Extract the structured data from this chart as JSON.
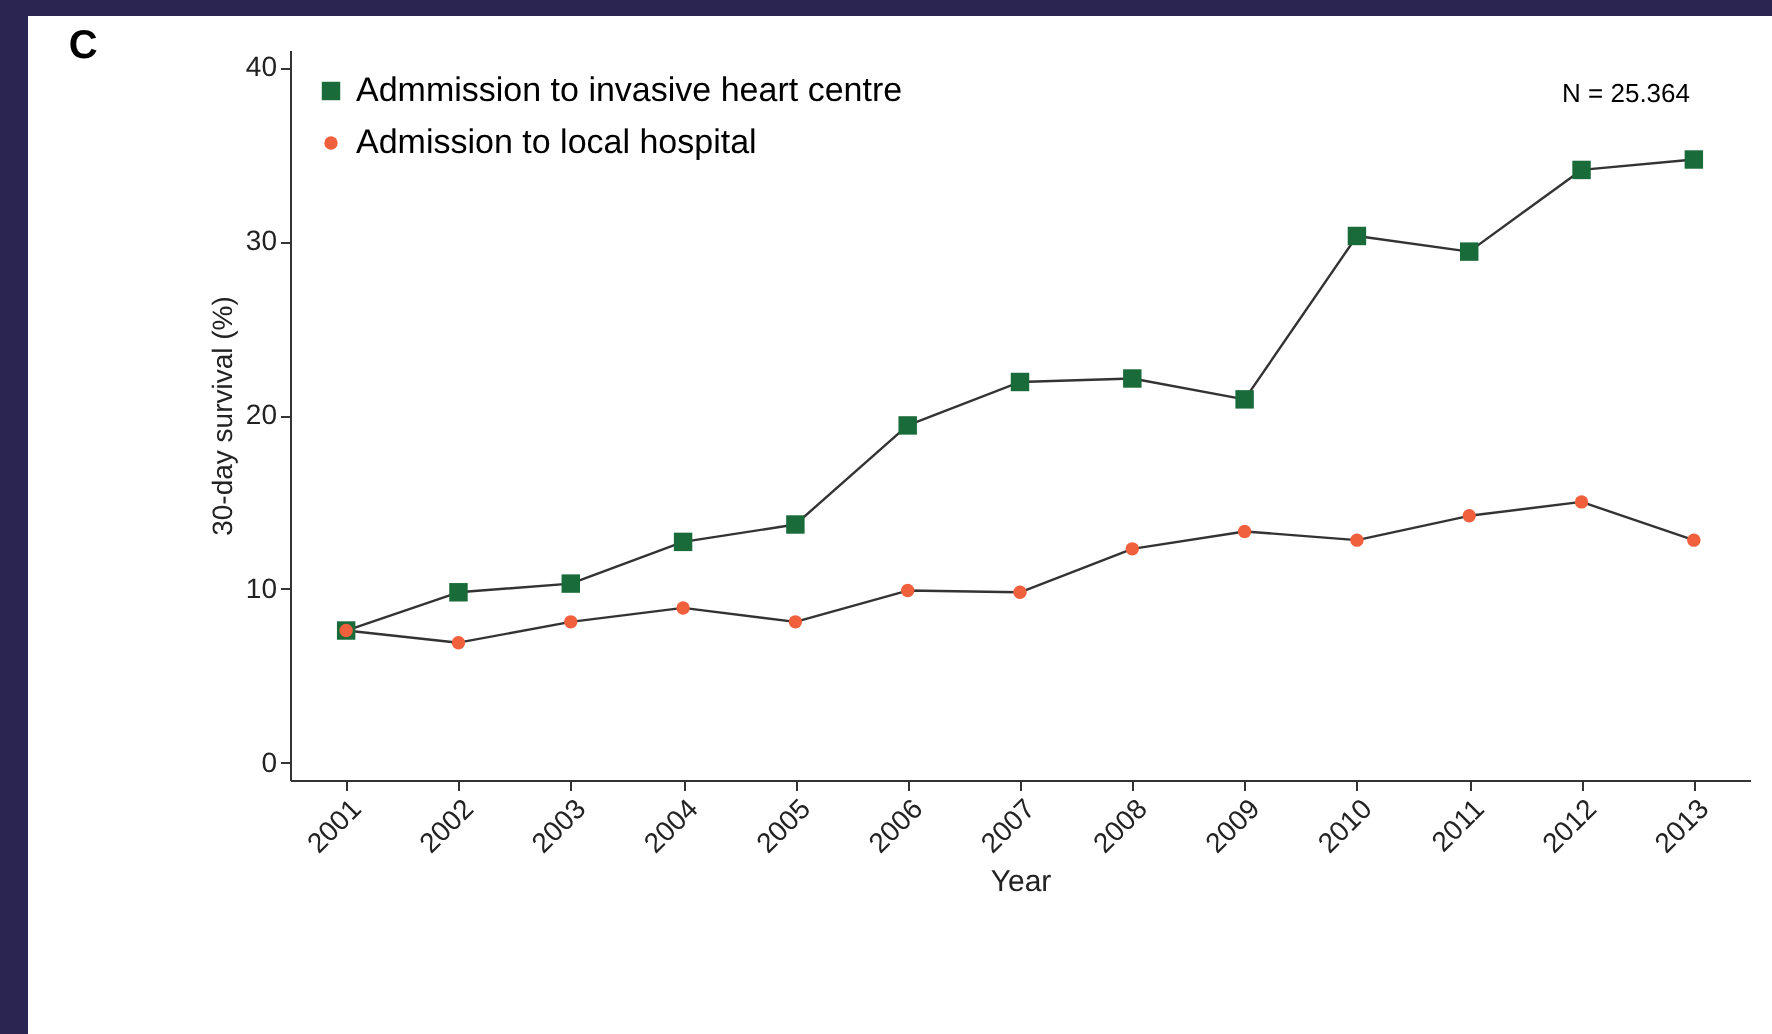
{
  "chart_data": {
    "type": "line",
    "title": "C",
    "xlabel": "Year",
    "ylabel": "30-day survival (%)",
    "categories": [
      "2001",
      "2002",
      "2003",
      "2004",
      "2005",
      "2006",
      "2007",
      "2008",
      "2009",
      "2010",
      "2011",
      "2012",
      "2013"
    ],
    "series": [
      {
        "name": "Admmission to invasive heart centre",
        "color": "#1a6b3a",
        "marker": "square",
        "values": [
          7.6,
          9.8,
          10.3,
          12.7,
          13.7,
          19.4,
          21.9,
          22.1,
          20.9,
          30.3,
          29.4,
          34.1,
          34.7
        ]
      },
      {
        "name": "Admission to local hospital",
        "color": "#f0603c",
        "marker": "circle",
        "values": [
          7.6,
          6.9,
          8.1,
          8.9,
          8.1,
          9.9,
          9.8,
          12.3,
          13.3,
          12.8,
          14.2,
          15.0,
          12.8
        ]
      }
    ],
    "ylim": [
      -1,
      41
    ],
    "yticks": [
      0,
      10,
      20,
      30,
      40
    ],
    "legend": "top left",
    "grid": false,
    "line_style": "solid",
    "annotations": [
      "N = 25.364"
    ]
  }
}
